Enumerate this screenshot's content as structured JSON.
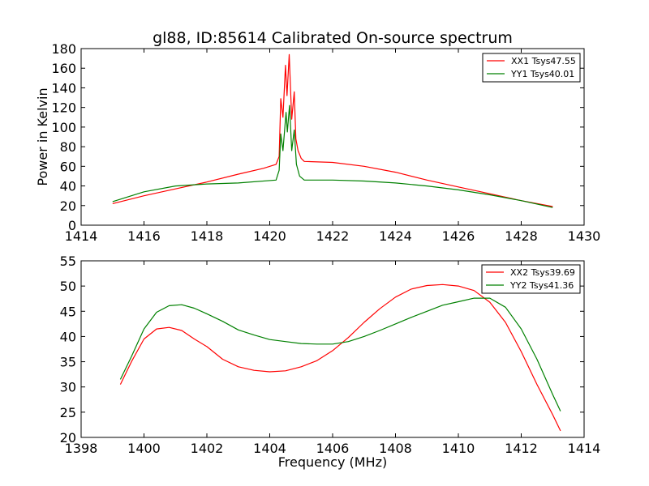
{
  "chart_data": [
    {
      "type": "line",
      "title": "gl88, ID:85614 Calibrated On-source spectrum",
      "xlabel": "",
      "ylabel": "Power in Kelvin",
      "xlim": [
        1414,
        1430
      ],
      "ylim": [
        0,
        180
      ],
      "xticks": [
        1414,
        1416,
        1418,
        1420,
        1422,
        1424,
        1426,
        1428,
        1430
      ],
      "yticks": [
        0,
        20,
        40,
        60,
        80,
        100,
        120,
        140,
        160,
        180
      ],
      "grid": false,
      "legend_position": "top-right",
      "series": [
        {
          "name": "XX1 Tsys47.55",
          "color": "#ff0000",
          "points": [
            [
              1415,
              22
            ],
            [
              1416,
              30
            ],
            [
              1417,
              37
            ],
            [
              1418,
              44
            ],
            [
              1419,
              52
            ],
            [
              1419.8,
              58
            ],
            [
              1420.2,
              62
            ],
            [
              1420.3,
              70
            ],
            [
              1420.35,
              129
            ],
            [
              1420.42,
              110
            ],
            [
              1420.5,
              163
            ],
            [
              1420.55,
              132
            ],
            [
              1420.62,
              174
            ],
            [
              1420.7,
              108
            ],
            [
              1420.78,
              136
            ],
            [
              1420.83,
              88
            ],
            [
              1420.9,
              76
            ],
            [
              1421.0,
              68
            ],
            [
              1421.1,
              65
            ],
            [
              1422,
              64
            ],
            [
              1423,
              60
            ],
            [
              1424,
              54
            ],
            [
              1425,
              46
            ],
            [
              1426,
              39
            ],
            [
              1427,
              32
            ],
            [
              1428,
              25
            ],
            [
              1429,
              19
            ]
          ]
        },
        {
          "name": "YY1 Tsys40.01",
          "color": "#008000",
          "points": [
            [
              1415,
              24
            ],
            [
              1416,
              34
            ],
            [
              1417,
              40
            ],
            [
              1418,
              42
            ],
            [
              1419,
              43
            ],
            [
              1420.2,
              46
            ],
            [
              1420.3,
              56
            ],
            [
              1420.35,
              93
            ],
            [
              1420.42,
              76
            ],
            [
              1420.52,
              115
            ],
            [
              1420.56,
              95
            ],
            [
              1420.63,
              122
            ],
            [
              1420.7,
              76
            ],
            [
              1420.78,
              97
            ],
            [
              1420.85,
              62
            ],
            [
              1420.95,
              50
            ],
            [
              1421.1,
              46
            ],
            [
              1422,
              46
            ],
            [
              1423,
              45
            ],
            [
              1424,
              43
            ],
            [
              1425,
              40
            ],
            [
              1426,
              36
            ],
            [
              1427,
              31
            ],
            [
              1428,
              25
            ],
            [
              1429,
              18
            ]
          ]
        }
      ]
    },
    {
      "type": "line",
      "title": "",
      "xlabel": "Frequency (MHz)",
      "ylabel": "",
      "xlim": [
        1398,
        1414
      ],
      "ylim": [
        20,
        55
      ],
      "xticks": [
        1398,
        1400,
        1402,
        1404,
        1406,
        1408,
        1410,
        1412,
        1414
      ],
      "yticks": [
        20,
        25,
        30,
        35,
        40,
        45,
        50,
        55
      ],
      "grid": false,
      "legend_position": "top-right",
      "series": [
        {
          "name": "XX2 Tsys39.69",
          "color": "#ff0000",
          "points": [
            [
              1399.25,
              30.5
            ],
            [
              1399.6,
              35
            ],
            [
              1400,
              39.5
            ],
            [
              1400.4,
              41.5
            ],
            [
              1400.8,
              41.8
            ],
            [
              1401.2,
              41.2
            ],
            [
              1401.6,
              39.5
            ],
            [
              1402,
              38
            ],
            [
              1402.5,
              35.5
            ],
            [
              1403,
              34
            ],
            [
              1403.5,
              33.3
            ],
            [
              1404,
              33
            ],
            [
              1404.5,
              33.2
            ],
            [
              1405,
              34
            ],
            [
              1405.5,
              35.2
            ],
            [
              1406,
              37.2
            ],
            [
              1406.5,
              39.8
            ],
            [
              1407,
              42.8
            ],
            [
              1407.5,
              45.5
            ],
            [
              1408,
              47.8
            ],
            [
              1408.5,
              49.4
            ],
            [
              1409,
              50.1
            ],
            [
              1409.5,
              50.3
            ],
            [
              1410,
              50
            ],
            [
              1410.5,
              49.1
            ],
            [
              1411,
              46.8
            ],
            [
              1411.5,
              42.8
            ],
            [
              1412,
              37
            ],
            [
              1412.5,
              30.5
            ],
            [
              1413,
              24.5
            ],
            [
              1413.25,
              21.3
            ]
          ]
        },
        {
          "name": "YY2 Tsys41.36",
          "color": "#008000",
          "points": [
            [
              1399.25,
              31.5
            ],
            [
              1399.6,
              36
            ],
            [
              1400,
              41.5
            ],
            [
              1400.4,
              44.8
            ],
            [
              1400.8,
              46.1
            ],
            [
              1401.2,
              46.3
            ],
            [
              1401.6,
              45.6
            ],
            [
              1402,
              44.5
            ],
            [
              1402.5,
              43
            ],
            [
              1403,
              41.3
            ],
            [
              1403.5,
              40.3
            ],
            [
              1404,
              39.4
            ],
            [
              1404.5,
              39
            ],
            [
              1405,
              38.6
            ],
            [
              1405.5,
              38.5
            ],
            [
              1406,
              38.5
            ],
            [
              1406.5,
              39
            ],
            [
              1407,
              40
            ],
            [
              1407.5,
              41.2
            ],
            [
              1408,
              42.5
            ],
            [
              1408.5,
              43.8
            ],
            [
              1409,
              45
            ],
            [
              1409.5,
              46.2
            ],
            [
              1410,
              46.9
            ],
            [
              1410.5,
              47.6
            ],
            [
              1411,
              47.6
            ],
            [
              1411.5,
              45.8
            ],
            [
              1412,
              41.5
            ],
            [
              1412.5,
              35.5
            ],
            [
              1413,
              28.5
            ],
            [
              1413.25,
              25.2
            ]
          ]
        }
      ]
    }
  ]
}
